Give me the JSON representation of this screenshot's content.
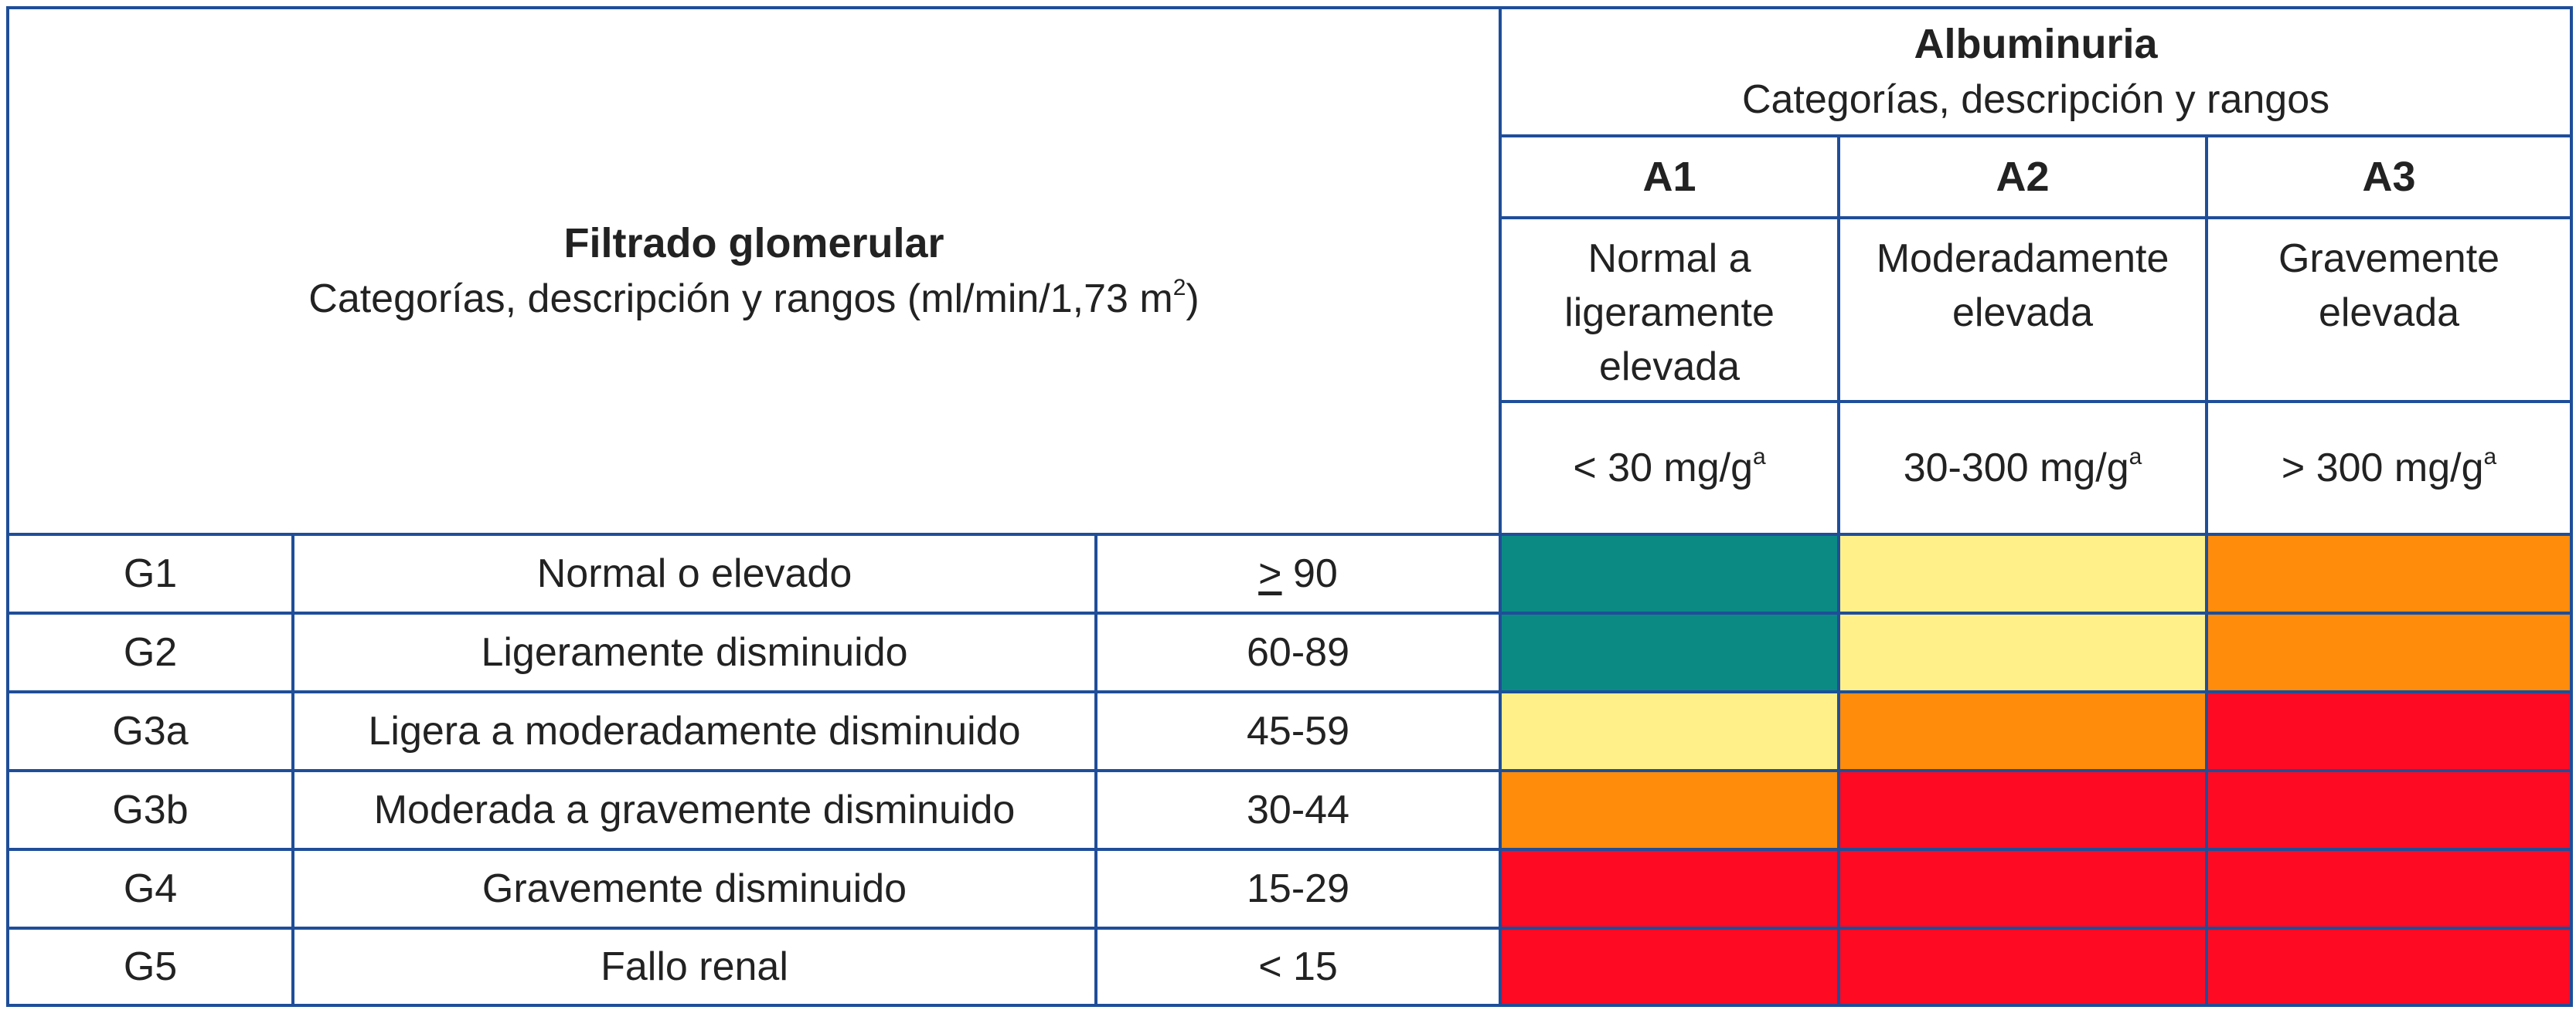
{
  "colors": {
    "border": "#1f4e99",
    "green": "#0b8a84",
    "yellow": "#fff08a",
    "orange": "#ff8c0a",
    "red": "#ff0a23"
  },
  "gfr_header": {
    "title": "Filtrado glomerular",
    "subtitle_prefix": "Categorías, descripción y rangos (ml/min/1,73 m",
    "subtitle_sup": "2",
    "subtitle_suffix": ")"
  },
  "albuminuria_header": {
    "title": "Albuminuria",
    "subtitle": "Categorías, descripción y rangos"
  },
  "albuminuria_categories": [
    {
      "code": "A1",
      "description": "Normal a ligeramente elevada",
      "range": "< 30 mg/g",
      "range_sup": "a"
    },
    {
      "code": "A2",
      "description": "Moderadamente elevada",
      "range": "30-300 mg/g",
      "range_sup": "a"
    },
    {
      "code": "A3",
      "description": "Gravemente elevada",
      "range": "> 300 mg/g",
      "range_sup": "a"
    }
  ],
  "rows": [
    {
      "code": "G1",
      "description": "Normal o elevado",
      "range_symbol": ">",
      "range": " 90",
      "risk": [
        "green",
        "yellow",
        "orange"
      ]
    },
    {
      "code": "G2",
      "description": "Ligeramente disminuido",
      "range_symbol": "",
      "range": "60-89",
      "risk": [
        "green",
        "yellow",
        "orange"
      ]
    },
    {
      "code": "G3a",
      "description": "Ligera a moderadamente disminuido",
      "range_symbol": "",
      "range": "45-59",
      "risk": [
        "yellow",
        "orange",
        "red"
      ]
    },
    {
      "code": "G3b",
      "description": "Moderada a gravemente disminuido",
      "range_symbol": "",
      "range": "30-44",
      "risk": [
        "orange",
        "red",
        "red"
      ]
    },
    {
      "code": "G4",
      "description": "Gravemente disminuido",
      "range_symbol": "",
      "range": "15-29",
      "risk": [
        "red",
        "red",
        "red"
      ]
    },
    {
      "code": "G5",
      "description": "Fallo renal",
      "range_symbol": "",
      "range": "< 15",
      "risk": [
        "red",
        "red",
        "red"
      ]
    }
  ]
}
